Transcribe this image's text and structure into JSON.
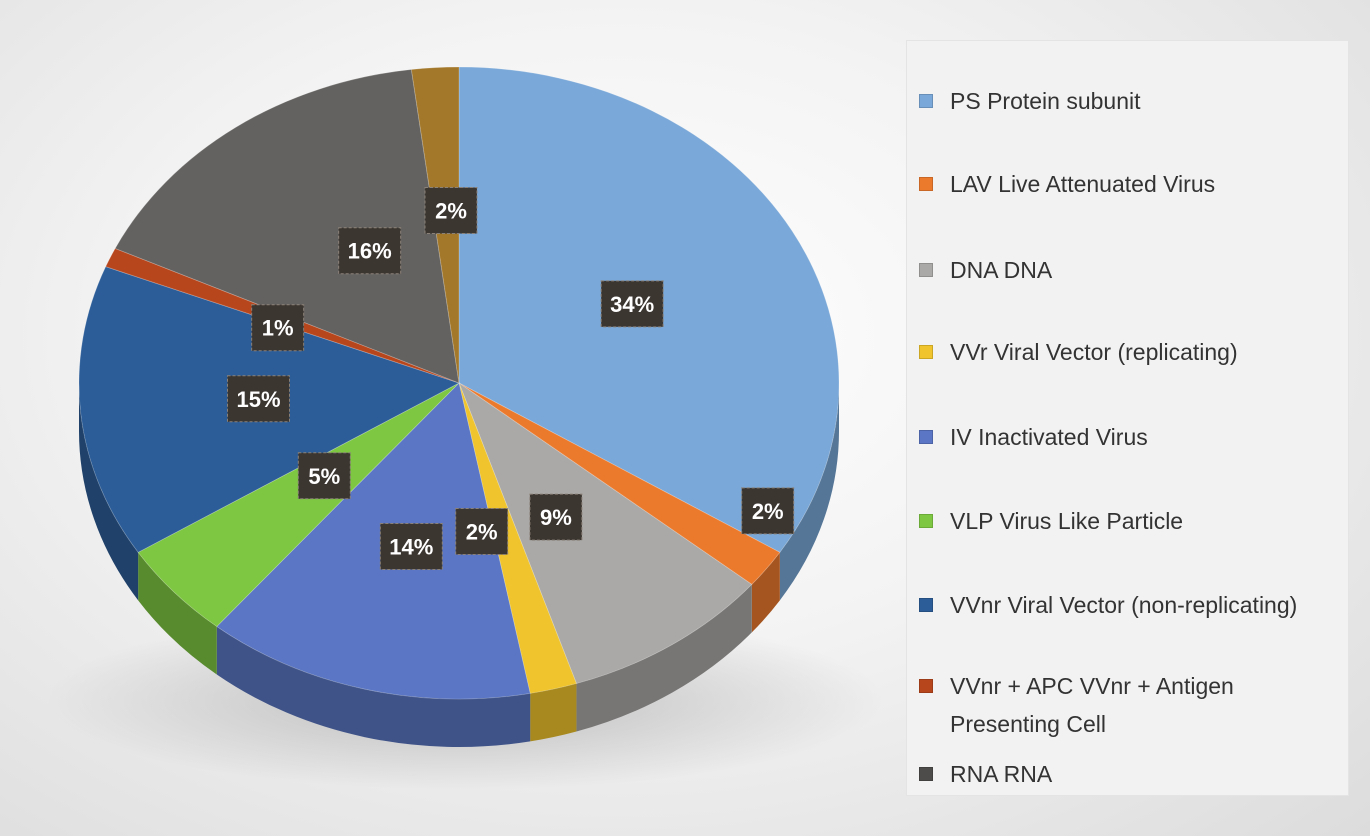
{
  "chart_data": {
    "type": "pie",
    "style": "3d",
    "title": "",
    "legend_position": "right",
    "slices": [
      {
        "name": "PS Protein subunit",
        "value": 34,
        "label": "34%",
        "color": "#7aa8d8"
      },
      {
        "name": "LAV Live Attenuated Virus",
        "value": 2,
        "label": "2%",
        "color": "#ec7a2d"
      },
      {
        "name": "DNA DNA",
        "value": 9,
        "label": "9%",
        "color": "#aba9a7"
      },
      {
        "name": "VVr Viral Vector (replicating)",
        "value": 2,
        "label": "2%",
        "color": "#efc42c"
      },
      {
        "name": "IV Inactivated Virus",
        "value": 14,
        "label": "14%",
        "color": "#5a76c4"
      },
      {
        "name": "VLP Virus Like Particle",
        "value": 5,
        "label": "5%",
        "color": "#7ec742"
      },
      {
        "name": "VVnr Viral Vector (non-replicating)",
        "value": 15,
        "label": "15%",
        "color": "#2c5d98"
      },
      {
        "name": "VVnr + APC VVnr + Antigen Presenting Cell",
        "value": 1,
        "label": "1%",
        "color": "#b8461c"
      },
      {
        "name": "RNA RNA",
        "value": 16,
        "label": "16%",
        "color": "#646260"
      },
      {
        "name": "",
        "value": 2,
        "label": "2%",
        "color": "#a3782b"
      }
    ],
    "legend": [
      "PS Protein subunit",
      "LAV Live Attenuated Virus",
      "DNA DNA",
      "VVr Viral Vector (replicating)",
      "IV Inactivated Virus",
      "VLP Virus Like Particle",
      "VVnr Viral Vector (non-replicating)",
      "VVnr + APC VVnr + Antigen Presenting Cell",
      "RNA RNA"
    ]
  },
  "legend_colors": [
    "#7aa8d8",
    "#ec7a2d",
    "#aba9a7",
    "#efc42c",
    "#5a76c4",
    "#7ec742",
    "#2c5d98",
    "#b8461c",
    "#4e4c4a"
  ]
}
